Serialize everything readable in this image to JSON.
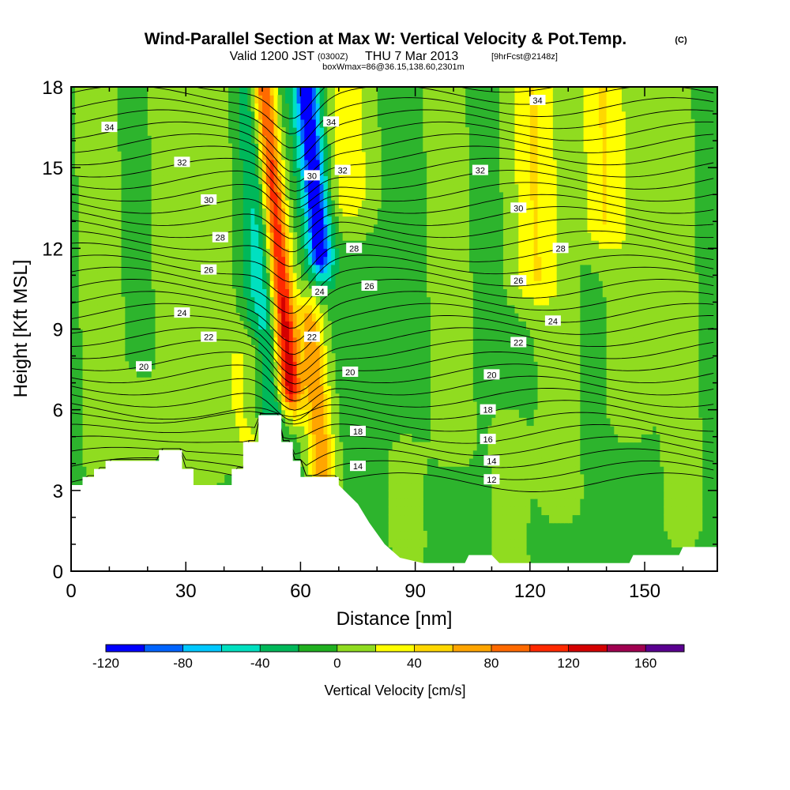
{
  "title": "Wind-Parallel Section at Max W: Vertical Velocity & Pot.Temp.",
  "title_mark": "(C)",
  "subtitle": {
    "valid_prefix": "Valid 1200 JST",
    "utc": "(0300Z)",
    "date": "THU 7 Mar 2013",
    "forecast": "[9hrFcst@2148z]",
    "box_info": "boxWmax=86@36.15,138.60,2301m"
  },
  "chart_data": {
    "type": "heatmap",
    "xlabel": "Distance [nm]",
    "ylabel": "Height [Kft MSL]",
    "xlim": [
      0,
      169
    ],
    "ylim": [
      0,
      18
    ],
    "x_ticks": [
      0,
      30,
      60,
      90,
      120,
      150
    ],
    "x_tick_labels": [
      "0",
      "30",
      "60",
      "90",
      "120",
      "150"
    ],
    "y_ticks": [
      0,
      3,
      6,
      9,
      12,
      15,
      18
    ],
    "y_tick_labels": [
      "0",
      "3",
      "6",
      "9",
      "12",
      "15",
      "18"
    ],
    "shaded_field": "Vertical velocity (cm/s)",
    "colorbar": {
      "title": "Vertical Velocity [cm/s]",
      "levels": [
        -120,
        -100,
        -80,
        -60,
        -40,
        -20,
        0,
        20,
        40,
        60,
        80,
        100,
        120,
        140,
        160,
        180
      ],
      "colors": [
        "#0000ff",
        "#0064ff",
        "#00c8ff",
        "#00e0c0",
        "#00b85a",
        "#20b020",
        "#90dc20",
        "#ffff00",
        "#ffd700",
        "#ffa500",
        "#ff6a00",
        "#ff2a00",
        "#d40000",
        "#a00050",
        "#5a0090"
      ],
      "tick_labels": [
        "-120",
        "-80",
        "-40",
        "0",
        "40",
        "80",
        "120",
        "160"
      ],
      "tick_values": [
        -120,
        -80,
        -40,
        0,
        40,
        80,
        120,
        160
      ]
    },
    "terrain_height_kft": [
      [
        0,
        3.2
      ],
      [
        3,
        3.2
      ],
      [
        3,
        3.5
      ],
      [
        6,
        3.5
      ],
      [
        6,
        3.8
      ],
      [
        9,
        3.8
      ],
      [
        9,
        4.1
      ],
      [
        23,
        4.1
      ],
      [
        23,
        4.5
      ],
      [
        29,
        4.5
      ],
      [
        29,
        3.8
      ],
      [
        32,
        3.8
      ],
      [
        32,
        3.2
      ],
      [
        42,
        3.2
      ],
      [
        42,
        3.8
      ],
      [
        45,
        3.8
      ],
      [
        45,
        4.8
      ],
      [
        49,
        4.8
      ],
      [
        49,
        5.8
      ],
      [
        55,
        5.8
      ],
      [
        55,
        4.8
      ],
      [
        58,
        4.8
      ],
      [
        58,
        4.1
      ],
      [
        60,
        4.1
      ],
      [
        60,
        3.5
      ],
      [
        70,
        3.5
      ],
      [
        70,
        3.2
      ],
      [
        75,
        2.5
      ],
      [
        78,
        1.8
      ],
      [
        82,
        1.0
      ],
      [
        86,
        0.5
      ],
      [
        92,
        0.3
      ],
      [
        103,
        0.3
      ],
      [
        104,
        0.6
      ],
      [
        110,
        0.6
      ],
      [
        112,
        0.3
      ],
      [
        146,
        0.3
      ],
      [
        147,
        0.6
      ],
      [
        159,
        0.6
      ],
      [
        160,
        0.9
      ],
      [
        169,
        0.9
      ]
    ],
    "updraft_cores": [
      {
        "x": 57,
        "y_range": [
          7,
          18
        ],
        "peak": 160
      },
      {
        "x": 66,
        "y_range": [
          3.5,
          9
        ],
        "peak": 80
      },
      {
        "x": 73,
        "y_range": [
          14,
          18
        ],
        "peak": 40
      },
      {
        "x": 121,
        "y_range": [
          11,
          18
        ],
        "peak": 40
      },
      {
        "x": 139,
        "y_range": [
          13,
          18
        ],
        "peak": 40
      }
    ],
    "downdraft_cores": [
      {
        "x": 52,
        "y_range": [
          6,
          18
        ],
        "peak": -60
      },
      {
        "x": 65,
        "y_range": [
          12,
          18
        ],
        "peak": -120
      }
    ],
    "pot_temp_contours": {
      "units": "C",
      "interval": 1,
      "labels": [
        {
          "text": "34",
          "x": 10,
          "y": 16.5
        },
        {
          "text": "34",
          "x": 68,
          "y": 16.7
        },
        {
          "text": "34",
          "x": 122,
          "y": 17.5
        },
        {
          "text": "32",
          "x": 29,
          "y": 15.2
        },
        {
          "text": "32",
          "x": 71,
          "y": 14.9
        },
        {
          "text": "32",
          "x": 107,
          "y": 14.9
        },
        {
          "text": "30",
          "x": 36,
          "y": 13.8
        },
        {
          "text": "30",
          "x": 63,
          "y": 14.7
        },
        {
          "text": "30",
          "x": 117,
          "y": 13.5
        },
        {
          "text": "28",
          "x": 39,
          "y": 12.4
        },
        {
          "text": "28",
          "x": 74,
          "y": 12
        },
        {
          "text": "28",
          "x": 128,
          "y": 12
        },
        {
          "text": "26",
          "x": 36,
          "y": 11.2
        },
        {
          "text": "26",
          "x": 78,
          "y": 10.6
        },
        {
          "text": "26",
          "x": 117,
          "y": 10.8
        },
        {
          "text": "24",
          "x": 29,
          "y": 9.6
        },
        {
          "text": "24",
          "x": 65,
          "y": 10.4
        },
        {
          "text": "24",
          "x": 126,
          "y": 9.3
        },
        {
          "text": "22",
          "x": 36,
          "y": 8.7
        },
        {
          "text": "22",
          "x": 63,
          "y": 8.7
        },
        {
          "text": "22",
          "x": 117,
          "y": 8.5
        },
        {
          "text": "20",
          "x": 19,
          "y": 7.6
        },
        {
          "text": "20",
          "x": 73,
          "y": 7.4
        },
        {
          "text": "20",
          "x": 110,
          "y": 7.3
        },
        {
          "text": "18",
          "x": 109,
          "y": 6.0
        },
        {
          "text": "18",
          "x": 75,
          "y": 5.2
        },
        {
          "text": "16",
          "x": 109,
          "y": 4.9
        },
        {
          "text": "14",
          "x": 75,
          "y": 3.9
        },
        {
          "text": "14",
          "x": 110,
          "y": 4.1
        },
        {
          "text": "12",
          "x": 110,
          "y": 3.4
        }
      ]
    }
  },
  "colors": {
    "background_shading": "#2db42d",
    "terrain": "#ffffff",
    "contour_line": "#000000"
  }
}
